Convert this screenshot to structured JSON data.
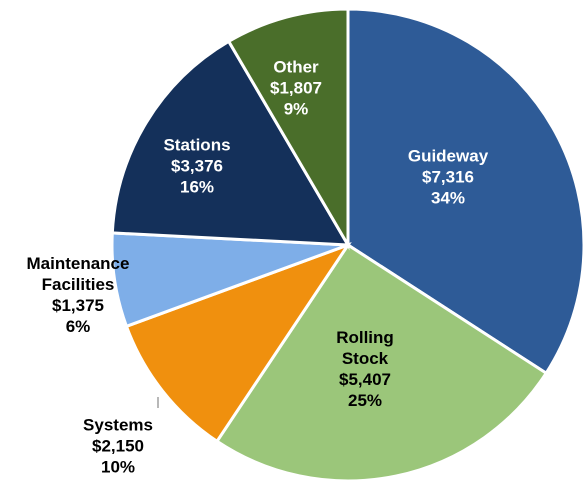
{
  "chart_data": {
    "type": "pie",
    "categories": [
      "Guideway",
      "Rolling Stock",
      "Systems",
      "Maintenance Facilities",
      "Stations",
      "Other"
    ],
    "values": [
      7316,
      5407,
      2150,
      1375,
      3376,
      1807
    ],
    "value_labels": [
      "$7,316",
      "$5,407",
      "$2,150",
      "$1,375",
      "$3,376",
      "$1,807"
    ],
    "percent_labels": [
      "34%",
      "25%",
      "10%",
      "6%",
      "16%",
      "9%"
    ],
    "colors": [
      "#2e5b97",
      "#9bc67a",
      "#f0900e",
      "#7eaee8",
      "#14305a",
      "#4a6e2a"
    ]
  }
}
